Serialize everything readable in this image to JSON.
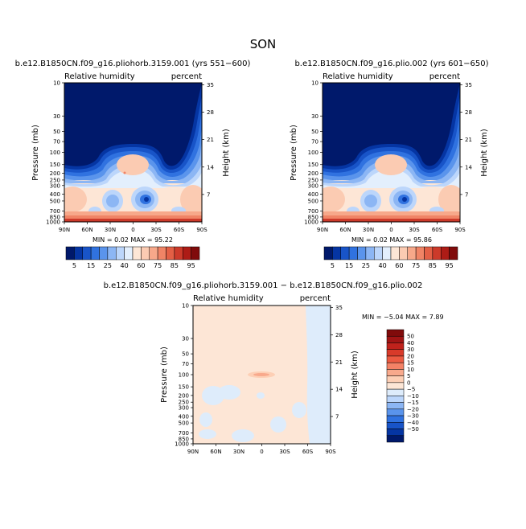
{
  "page_title": "SON",
  "chart_data": [
    {
      "type": "heatmap",
      "title": "b.e12.B1850CN.f09_g16.pliohorb.3159.001 (yrs 551−600)",
      "left_label": "Relative humidity",
      "right_label": "percent",
      "xlabel": "",
      "ylabel": "Pressure (mb)",
      "ylabel_right": "Height (km)",
      "x_ticks": [
        "90N",
        "60N",
        "30N",
        "0",
        "30S",
        "60S",
        "90S"
      ],
      "y_ticks": [
        "10",
        "30",
        "50",
        "70",
        "100",
        "150",
        "200",
        "250",
        "300",
        "400",
        "500",
        "700",
        "850",
        "1000"
      ],
      "y_ticks_right": [
        "35",
        "28",
        "21",
        "14",
        "7"
      ],
      "stats_text": "MIN =    0.02   MAX =    95.22",
      "colorbar_levels": [
        "5",
        "15",
        "25",
        "40",
        "60",
        "75",
        "85",
        "95"
      ],
      "colorbar_colors": [
        "#00196b",
        "#0535a3",
        "#1854c8",
        "#3072e0",
        "#5a94ec",
        "#8cb6f4",
        "#bcd6fb",
        "#e3effd",
        "#fde6d6",
        "#fbcbb2",
        "#f7a88a",
        "#f08466",
        "#e35f45",
        "#cc3a2a",
        "#ad1c16",
        "#800b0b"
      ],
      "field": "relative humidity (%)",
      "min": 0.02,
      "max": 95.22
    },
    {
      "type": "heatmap",
      "title": "b.e12.B1850CN.f09_g16.plio.002 (yrs 601−650)",
      "left_label": "Relative humidity",
      "right_label": "percent",
      "xlabel": "",
      "ylabel": "Pressure (mb)",
      "ylabel_right": "Height (km)",
      "x_ticks": [
        "90N",
        "60N",
        "30N",
        "0",
        "30S",
        "60S",
        "90S"
      ],
      "y_ticks": [
        "10",
        "30",
        "50",
        "70",
        "100",
        "150",
        "200",
        "250",
        "300",
        "400",
        "500",
        "700",
        "850",
        "1000"
      ],
      "y_ticks_right": [
        "35",
        "28",
        "21",
        "14",
        "7"
      ],
      "stats_text": "MIN =    0.02   MAX =    95.86",
      "colorbar_levels": [
        "5",
        "15",
        "25",
        "40",
        "60",
        "75",
        "85",
        "95"
      ],
      "field": "relative humidity (%)",
      "min": 0.02,
      "max": 95.86
    },
    {
      "type": "heatmap",
      "title": "b.e12.B1850CN.f09_g16.pliohorb.3159.001 − b.e12.B1850CN.f09_g16.plio.002",
      "left_label": "Relative humidity",
      "right_label": "percent",
      "xlabel": "",
      "ylabel": "Pressure (mb)",
      "ylabel_right": "Height (km)",
      "x_ticks": [
        "90N",
        "60N",
        "30N",
        "0",
        "30S",
        "60S",
        "90S"
      ],
      "y_ticks": [
        "10",
        "30",
        "50",
        "70",
        "100",
        "150",
        "200",
        "250",
        "300",
        "400",
        "500",
        "700",
        "850",
        "1000"
      ],
      "y_ticks_right": [
        "35",
        "28",
        "21",
        "14",
        "7"
      ],
      "stats_text": "MIN =  −5.04   MAX =    7.89",
      "colorbar_levels": [
        "50",
        "40",
        "30",
        "20",
        "15",
        "10",
        "5",
        "0",
        "−5",
        "−10",
        "−15",
        "−20",
        "−30",
        "−40",
        "−50"
      ],
      "colorbar_colors": [
        "#800b0b",
        "#a11414",
        "#c0221c",
        "#d83a2a",
        "#ec5a42",
        "#f48266",
        "#f8a98c",
        "#fdcfb5",
        "#fde6d6",
        "#deecfb",
        "#bcd6fb",
        "#8cb6f4",
        "#5a94ec",
        "#3072e0",
        "#1854c8",
        "#0535a3",
        "#00196b"
      ],
      "field": "relative humidity difference (%)",
      "min": -5.04,
      "max": 7.89
    }
  ]
}
